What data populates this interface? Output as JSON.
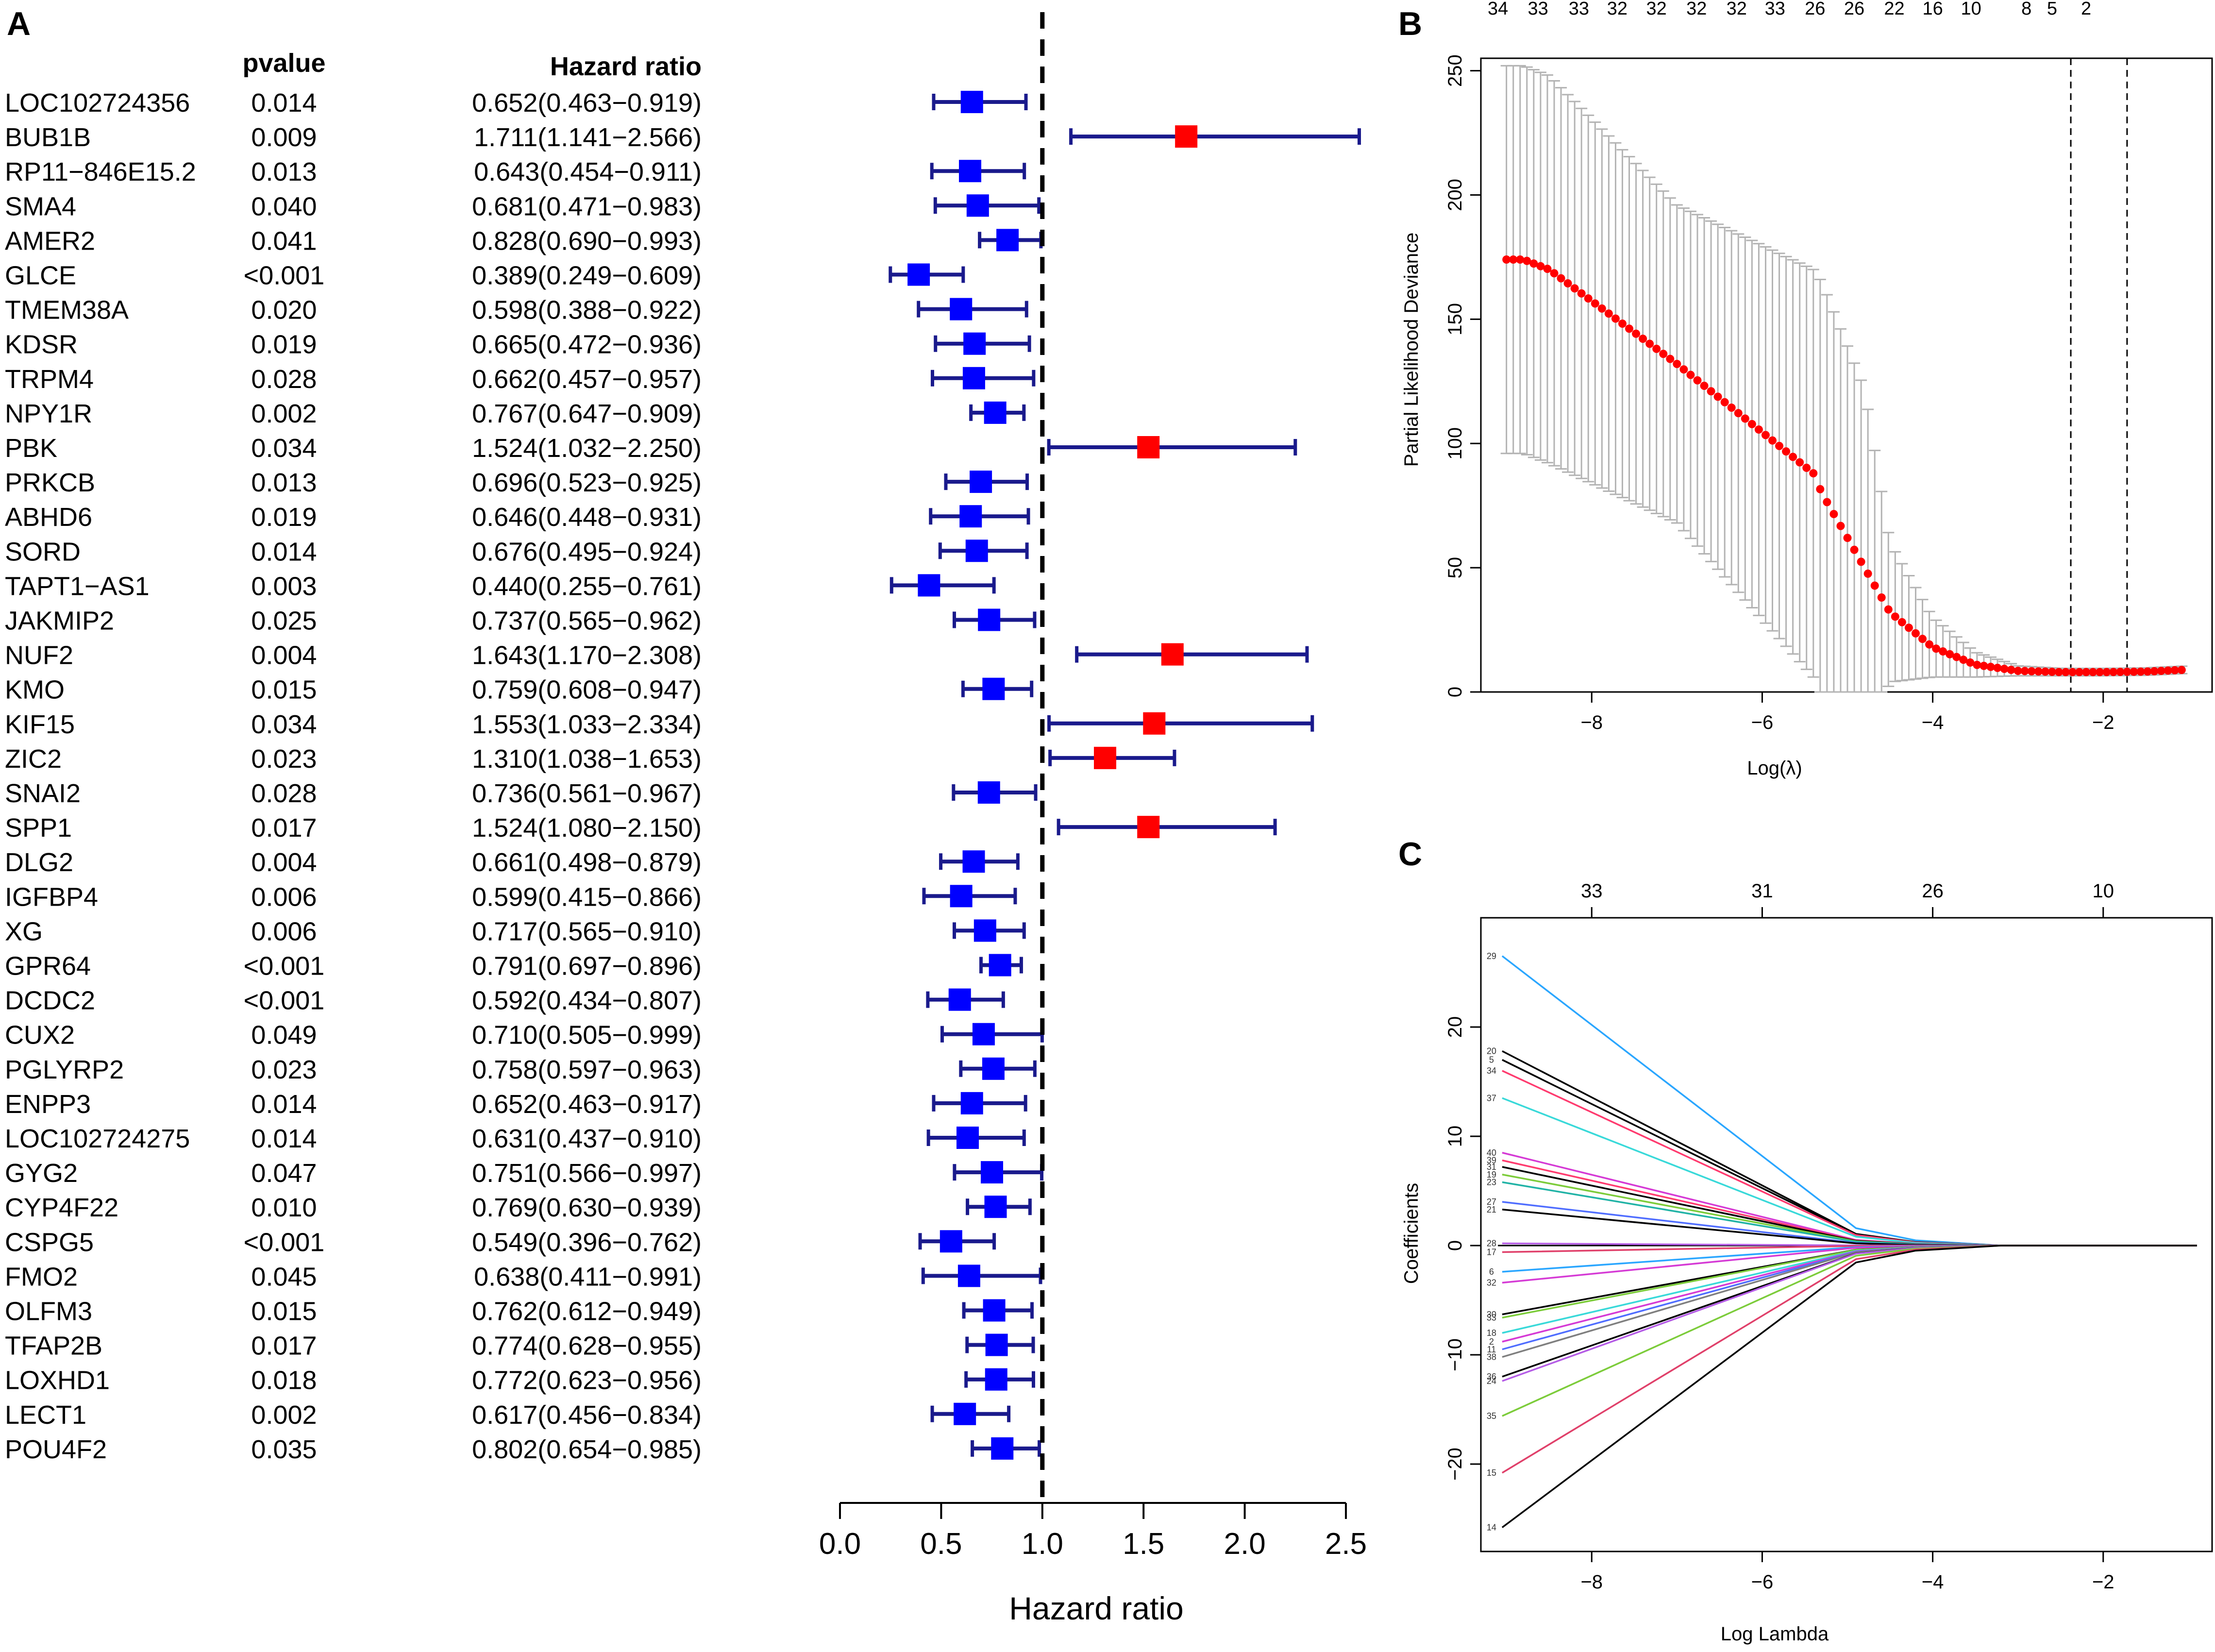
{
  "panel_labels": {
    "a": "A",
    "b": "B",
    "c": "C"
  },
  "colors": {
    "protective": "#0000ff",
    "risk": "#ff0000",
    "ci_line": "#1a1a8c",
    "deviance_point": "#ff0000",
    "errorbar": "#b3b3b3",
    "axis": "#000000",
    "lasso_paths": [
      "#2aa6ff",
      "#000000",
      "#ff3b6f",
      "#39d9d9",
      "#d53ad5",
      "#7ccc3a",
      "#21b3a6",
      "#4f6dff",
      "#b55ce6",
      "#e0406a",
      "#7f7f7f",
      "#18a7c7"
    ]
  },
  "chart_data": [
    {
      "type": "forest",
      "panel": "A",
      "col_header_p": "pvalue",
      "col_header_hr": "Hazard ratio",
      "xlabel": "Hazard ratio",
      "xlim": [
        0.0,
        2.5
      ],
      "xticks": [
        "0.0",
        "0.5",
        "1.0",
        "1.5",
        "2.0",
        "2.5"
      ],
      "reference_line": 1.0,
      "rows": [
        {
          "gene": "LOC102724356",
          "pvalue": "0.014",
          "hr_text": "0.652(0.463−0.919)",
          "hr": 0.652,
          "lo": 0.463,
          "hi": 0.919
        },
        {
          "gene": "BUB1B",
          "pvalue": "0.009",
          "hr_text": "1.711(1.141−2.566)",
          "hr": 1.711,
          "lo": 1.141,
          "hi": 2.566
        },
        {
          "gene": "RP11−846E15.2",
          "pvalue": "0.013",
          "hr_text": "0.643(0.454−0.911)",
          "hr": 0.643,
          "lo": 0.454,
          "hi": 0.911
        },
        {
          "gene": "SMA4",
          "pvalue": "0.040",
          "hr_text": "0.681(0.471−0.983)",
          "hr": 0.681,
          "lo": 0.471,
          "hi": 0.983
        },
        {
          "gene": "AMER2",
          "pvalue": "0.041",
          "hr_text": "0.828(0.690−0.993)",
          "hr": 0.828,
          "lo": 0.69,
          "hi": 0.993
        },
        {
          "gene": "GLCE",
          "pvalue": "<0.001",
          "hr_text": "0.389(0.249−0.609)",
          "hr": 0.389,
          "lo": 0.249,
          "hi": 0.609
        },
        {
          "gene": "TMEM38A",
          "pvalue": "0.020",
          "hr_text": "0.598(0.388−0.922)",
          "hr": 0.598,
          "lo": 0.388,
          "hi": 0.922
        },
        {
          "gene": "KDSR",
          "pvalue": "0.019",
          "hr_text": "0.665(0.472−0.936)",
          "hr": 0.665,
          "lo": 0.472,
          "hi": 0.936
        },
        {
          "gene": "TRPM4",
          "pvalue": "0.028",
          "hr_text": "0.662(0.457−0.957)",
          "hr": 0.662,
          "lo": 0.457,
          "hi": 0.957
        },
        {
          "gene": "NPY1R",
          "pvalue": "0.002",
          "hr_text": "0.767(0.647−0.909)",
          "hr": 0.767,
          "lo": 0.647,
          "hi": 0.909
        },
        {
          "gene": "PBK",
          "pvalue": "0.034",
          "hr_text": "1.524(1.032−2.250)",
          "hr": 1.524,
          "lo": 1.032,
          "hi": 2.25
        },
        {
          "gene": "PRKCB",
          "pvalue": "0.013",
          "hr_text": "0.696(0.523−0.925)",
          "hr": 0.696,
          "lo": 0.523,
          "hi": 0.925
        },
        {
          "gene": "ABHD6",
          "pvalue": "0.019",
          "hr_text": "0.646(0.448−0.931)",
          "hr": 0.646,
          "lo": 0.448,
          "hi": 0.931
        },
        {
          "gene": "SORD",
          "pvalue": "0.014",
          "hr_text": "0.676(0.495−0.924)",
          "hr": 0.676,
          "lo": 0.495,
          "hi": 0.924
        },
        {
          "gene": "TAPT1−AS1",
          "pvalue": "0.003",
          "hr_text": "0.440(0.255−0.761)",
          "hr": 0.44,
          "lo": 0.255,
          "hi": 0.761
        },
        {
          "gene": "JAKMIP2",
          "pvalue": "0.025",
          "hr_text": "0.737(0.565−0.962)",
          "hr": 0.737,
          "lo": 0.565,
          "hi": 0.962
        },
        {
          "gene": "NUF2",
          "pvalue": "0.004",
          "hr_text": "1.643(1.170−2.308)",
          "hr": 1.643,
          "lo": 1.17,
          "hi": 2.308
        },
        {
          "gene": "KMO",
          "pvalue": "0.015",
          "hr_text": "0.759(0.608−0.947)",
          "hr": 0.759,
          "lo": 0.608,
          "hi": 0.947
        },
        {
          "gene": "KIF15",
          "pvalue": "0.034",
          "hr_text": "1.553(1.033−2.334)",
          "hr": 1.553,
          "lo": 1.033,
          "hi": 2.334
        },
        {
          "gene": "ZIC2",
          "pvalue": "0.023",
          "hr_text": "1.310(1.038−1.653)",
          "hr": 1.31,
          "lo": 1.038,
          "hi": 1.653
        },
        {
          "gene": "SNAI2",
          "pvalue": "0.028",
          "hr_text": "0.736(0.561−0.967)",
          "hr": 0.736,
          "lo": 0.561,
          "hi": 0.967
        },
        {
          "gene": "SPP1",
          "pvalue": "0.017",
          "hr_text": "1.524(1.080−2.150)",
          "hr": 1.524,
          "lo": 1.08,
          "hi": 2.15
        },
        {
          "gene": "DLG2",
          "pvalue": "0.004",
          "hr_text": "0.661(0.498−0.879)",
          "hr": 0.661,
          "lo": 0.498,
          "hi": 0.879
        },
        {
          "gene": "IGFBP4",
          "pvalue": "0.006",
          "hr_text": "0.599(0.415−0.866)",
          "hr": 0.599,
          "lo": 0.415,
          "hi": 0.866
        },
        {
          "gene": "XG",
          "pvalue": "0.006",
          "hr_text": "0.717(0.565−0.910)",
          "hr": 0.717,
          "lo": 0.565,
          "hi": 0.91
        },
        {
          "gene": "GPR64",
          "pvalue": "<0.001",
          "hr_text": "0.791(0.697−0.896)",
          "hr": 0.791,
          "lo": 0.697,
          "hi": 0.896
        },
        {
          "gene": "DCDC2",
          "pvalue": "<0.001",
          "hr_text": "0.592(0.434−0.807)",
          "hr": 0.592,
          "lo": 0.434,
          "hi": 0.807
        },
        {
          "gene": "CUX2",
          "pvalue": "0.049",
          "hr_text": "0.710(0.505−0.999)",
          "hr": 0.71,
          "lo": 0.505,
          "hi": 0.999
        },
        {
          "gene": "PGLYRP2",
          "pvalue": "0.023",
          "hr_text": "0.758(0.597−0.963)",
          "hr": 0.758,
          "lo": 0.597,
          "hi": 0.963
        },
        {
          "gene": "ENPP3",
          "pvalue": "0.014",
          "hr_text": "0.652(0.463−0.917)",
          "hr": 0.652,
          "lo": 0.463,
          "hi": 0.917
        },
        {
          "gene": "LOC102724275",
          "pvalue": "0.014",
          "hr_text": "0.631(0.437−0.910)",
          "hr": 0.631,
          "lo": 0.437,
          "hi": 0.91
        },
        {
          "gene": "GYG2",
          "pvalue": "0.047",
          "hr_text": "0.751(0.566−0.997)",
          "hr": 0.751,
          "lo": 0.566,
          "hi": 0.997
        },
        {
          "gene": "CYP4F22",
          "pvalue": "0.010",
          "hr_text": "0.769(0.630−0.939)",
          "hr": 0.769,
          "lo": 0.63,
          "hi": 0.939
        },
        {
          "gene": "CSPG5",
          "pvalue": "<0.001",
          "hr_text": "0.549(0.396−0.762)",
          "hr": 0.549,
          "lo": 0.396,
          "hi": 0.762
        },
        {
          "gene": "FMO2",
          "pvalue": "0.045",
          "hr_text": "0.638(0.411−0.991)",
          "hr": 0.638,
          "lo": 0.411,
          "hi": 0.991
        },
        {
          "gene": "OLFM3",
          "pvalue": "0.015",
          "hr_text": "0.762(0.612−0.949)",
          "hr": 0.762,
          "lo": 0.612,
          "hi": 0.949
        },
        {
          "gene": "TFAP2B",
          "pvalue": "0.017",
          "hr_text": "0.774(0.628−0.955)",
          "hr": 0.774,
          "lo": 0.628,
          "hi": 0.955
        },
        {
          "gene": "LOXHD1",
          "pvalue": "0.018",
          "hr_text": "0.772(0.623−0.956)",
          "hr": 0.772,
          "lo": 0.623,
          "hi": 0.956
        },
        {
          "gene": "LECT1",
          "pvalue": "0.002",
          "hr_text": "0.617(0.456−0.834)",
          "hr": 0.617,
          "lo": 0.456,
          "hi": 0.834
        },
        {
          "gene": "POU4F2",
          "pvalue": "0.035",
          "hr_text": "0.802(0.654−0.985)",
          "hr": 0.802,
          "lo": 0.654,
          "hi": 0.985
        }
      ]
    },
    {
      "type": "scatter",
      "panel": "B",
      "xlabel": "Log(λ)",
      "ylabel": "Partial Likelihood Deviance",
      "xlim": [
        -9.3,
        -0.7
      ],
      "ylim": [
        0,
        255
      ],
      "xticks": [
        -8,
        -6,
        -4,
        -2
      ],
      "yticks": [
        0,
        50,
        100,
        150,
        200,
        250
      ],
      "top_axis": {
        "x": [
          -9.1,
          -8.63,
          -8.15,
          -7.7,
          -7.24,
          -6.77,
          -6.3,
          -5.85,
          -5.38,
          -4.92,
          -4.45,
          -4.0,
          -3.55,
          -3.08,
          -2.4,
          -1.7,
          -1.35,
          -1.0
        ],
        "labels": [
          "34",
          "33",
          "33",
          "32",
          "32",
          "32",
          "32",
          "33",
          "26",
          "26",
          "22",
          "16",
          "10",
          "8",
          "5",
          "2"
        ],
        "positions": [
          -9.1,
          -8.63,
          -8.15,
          -7.7,
          -7.24,
          -6.77,
          -6.3,
          -5.85,
          -5.38,
          -4.92,
          -4.45,
          -4.0,
          -3.55,
          -2.9,
          -2.6,
          -2.2
        ]
      },
      "vlines": [
        -2.38,
        -1.72
      ],
      "series": [
        {
          "name": "cv_mean",
          "x_start": -9.0,
          "x_step": 0.08,
          "n": 100,
          "knots_x": [
            -9.0,
            -8.8,
            -8.5,
            -7.0,
            -5.4,
            -5.3,
            -4.8,
            -4.5,
            -4.0,
            -3.5,
            -3.0,
            -2.5,
            -2.0,
            -1.5,
            -1.0
          ],
          "knots_y": [
            174,
            174,
            170,
            132,
            88,
            80,
            50,
            32,
            18,
            11,
            8.5,
            8,
            8,
            8.2,
            9
          ],
          "se_knots_y": [
            78,
            78,
            78,
            64,
            82,
            85,
            72,
            28,
            12,
            5,
            2,
            1.5,
            1.5,
            1.5,
            1.5
          ]
        }
      ]
    },
    {
      "type": "line",
      "panel": "C",
      "xlabel": "Log Lambda",
      "ylabel": "Coefficients",
      "xlim": [
        -9.3,
        -0.7
      ],
      "ylim": [
        -28,
        30
      ],
      "xticks": [
        -8,
        -6,
        -4,
        -2
      ],
      "yticks": [
        -20,
        -10,
        0,
        10,
        20
      ],
      "top_axis": {
        "labels": [
          "33",
          "31",
          "26",
          "10"
        ],
        "positions": [
          -8.0,
          -6.0,
          -4.0,
          -2.0
        ]
      },
      "paths": [
        {
          "label": "29",
          "start": 26.5,
          "color_index": 0
        },
        {
          "label": "20",
          "start": 17.8,
          "color_index": 1
        },
        {
          "label": "5",
          "start": 17.0,
          "color_index": 1
        },
        {
          "label": "34",
          "start": 16.0,
          "color_index": 2
        },
        {
          "label": "37",
          "start": 13.5,
          "color_index": 3
        },
        {
          "label": "40",
          "start": 8.5,
          "color_index": 4
        },
        {
          "label": "39",
          "start": 7.8,
          "color_index": 2
        },
        {
          "label": "31",
          "start": 7.2,
          "color_index": 1
        },
        {
          "label": "19",
          "start": 6.5,
          "color_index": 5
        },
        {
          "label": "23",
          "start": 5.8,
          "color_index": 6
        },
        {
          "label": "27",
          "start": 4.0,
          "color_index": 7
        },
        {
          "label": "21",
          "start": 3.3,
          "color_index": 1
        },
        {
          "label": "28",
          "start": 0.2,
          "color_index": 8
        },
        {
          "label": "17",
          "start": -0.6,
          "color_index": 9
        },
        {
          "label": "6",
          "start": -2.4,
          "color_index": 0
        },
        {
          "label": "32",
          "start": -3.4,
          "color_index": 4
        },
        {
          "label": "30",
          "start": -6.3,
          "color_index": 1
        },
        {
          "label": "33",
          "start": -6.6,
          "color_index": 5
        },
        {
          "label": "18",
          "start": -8.0,
          "color_index": 3
        },
        {
          "label": "2",
          "start": -8.8,
          "color_index": 4
        },
        {
          "label": "11",
          "start": -9.5,
          "color_index": 7
        },
        {
          "label": "38",
          "start": -10.2,
          "color_index": 10
        },
        {
          "label": "36",
          "start": -12.0,
          "color_index": 1
        },
        {
          "label": "24",
          "start": -12.4,
          "color_index": 8
        },
        {
          "label": "35",
          "start": -15.6,
          "color_index": 5
        },
        {
          "label": "15",
          "start": -20.8,
          "color_index": 9
        },
        {
          "label": "14",
          "start": -25.8,
          "color_index": 1
        }
      ]
    }
  ]
}
